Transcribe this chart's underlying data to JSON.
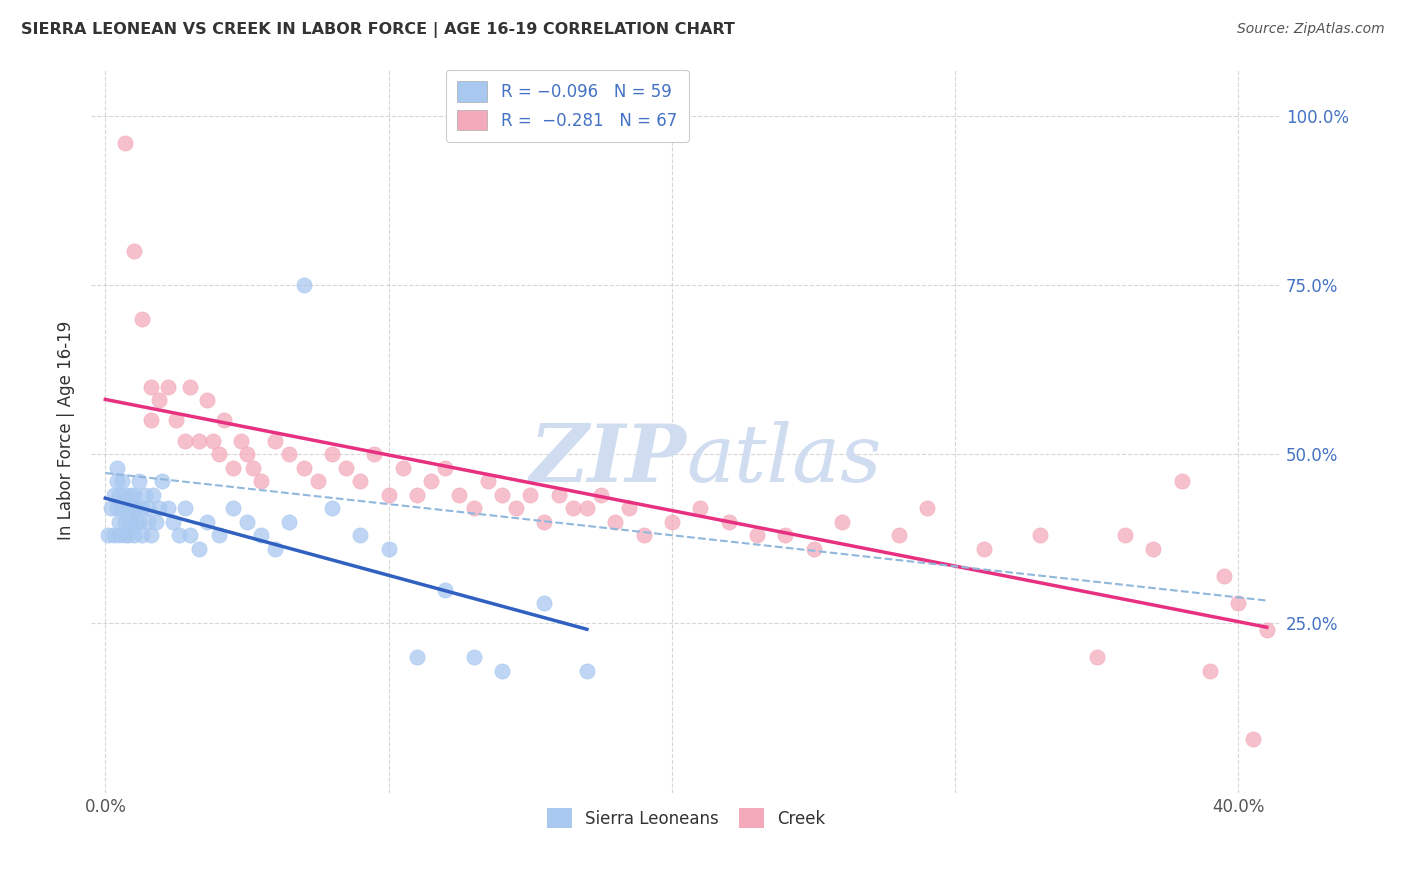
{
  "title": "SIERRA LEONEAN VS CREEK IN LABOR FORCE | AGE 16-19 CORRELATION CHART",
  "source": "Source: ZipAtlas.com",
  "ylabel": "In Labor Force | Age 16-19",
  "xlim": [
    -0.005,
    0.415
  ],
  "ylim": [
    0.0,
    1.07
  ],
  "sl_R": -0.096,
  "sl_N": 59,
  "creek_R": -0.281,
  "creek_N": 67,
  "sl_color": "#A8C8F0",
  "creek_color": "#F4AABB",
  "sl_line_color": "#3060C0",
  "creek_line_color": "#E83080",
  "dash_line_color": "#90B8DC",
  "watermark_color": "#D0DCF0",
  "sl_x": [
    0.001,
    0.002,
    0.003,
    0.003,
    0.004,
    0.004,
    0.004,
    0.005,
    0.005,
    0.005,
    0.006,
    0.006,
    0.007,
    0.007,
    0.007,
    0.008,
    0.008,
    0.009,
    0.009,
    0.01,
    0.01,
    0.01,
    0.011,
    0.011,
    0.012,
    0.012,
    0.013,
    0.013,
    0.014,
    0.015,
    0.015,
    0.016,
    0.017,
    0.018,
    0.019,
    0.02,
    0.022,
    0.024,
    0.026,
    0.028,
    0.03,
    0.033,
    0.036,
    0.04,
    0.045,
    0.05,
    0.055,
    0.06,
    0.065,
    0.07,
    0.08,
    0.09,
    0.1,
    0.11,
    0.12,
    0.13,
    0.14,
    0.155,
    0.17
  ],
  "sl_y": [
    0.38,
    0.42,
    0.44,
    0.38,
    0.46,
    0.42,
    0.48,
    0.44,
    0.38,
    0.4,
    0.42,
    0.46,
    0.4,
    0.44,
    0.38,
    0.42,
    0.38,
    0.44,
    0.4,
    0.42,
    0.44,
    0.38,
    0.42,
    0.4,
    0.46,
    0.4,
    0.42,
    0.38,
    0.44,
    0.4,
    0.42,
    0.38,
    0.44,
    0.4,
    0.42,
    0.46,
    0.42,
    0.4,
    0.38,
    0.42,
    0.38,
    0.36,
    0.4,
    0.38,
    0.42,
    0.4,
    0.38,
    0.36,
    0.4,
    0.75,
    0.42,
    0.38,
    0.36,
    0.2,
    0.3,
    0.2,
    0.18,
    0.28,
    0.18
  ],
  "creek_x": [
    0.007,
    0.01,
    0.013,
    0.016,
    0.016,
    0.019,
    0.022,
    0.025,
    0.028,
    0.03,
    0.033,
    0.036,
    0.038,
    0.04,
    0.042,
    0.045,
    0.048,
    0.05,
    0.052,
    0.055,
    0.06,
    0.065,
    0.07,
    0.075,
    0.08,
    0.085,
    0.09,
    0.095,
    0.1,
    0.105,
    0.11,
    0.115,
    0.12,
    0.125,
    0.13,
    0.135,
    0.14,
    0.145,
    0.15,
    0.155,
    0.16,
    0.165,
    0.17,
    0.175,
    0.18,
    0.185,
    0.19,
    0.2,
    0.21,
    0.22,
    0.23,
    0.24,
    0.25,
    0.26,
    0.28,
    0.29,
    0.31,
    0.33,
    0.35,
    0.36,
    0.37,
    0.38,
    0.39,
    0.395,
    0.4,
    0.405,
    0.41
  ],
  "creek_y": [
    0.96,
    0.8,
    0.7,
    0.6,
    0.55,
    0.58,
    0.6,
    0.55,
    0.52,
    0.6,
    0.52,
    0.58,
    0.52,
    0.5,
    0.55,
    0.48,
    0.52,
    0.5,
    0.48,
    0.46,
    0.52,
    0.5,
    0.48,
    0.46,
    0.5,
    0.48,
    0.46,
    0.5,
    0.44,
    0.48,
    0.44,
    0.46,
    0.48,
    0.44,
    0.42,
    0.46,
    0.44,
    0.42,
    0.44,
    0.4,
    0.44,
    0.42,
    0.42,
    0.44,
    0.4,
    0.42,
    0.38,
    0.4,
    0.42,
    0.4,
    0.38,
    0.38,
    0.36,
    0.4,
    0.38,
    0.42,
    0.36,
    0.38,
    0.2,
    0.38,
    0.36,
    0.46,
    0.18,
    0.32,
    0.28,
    0.08,
    0.24
  ]
}
